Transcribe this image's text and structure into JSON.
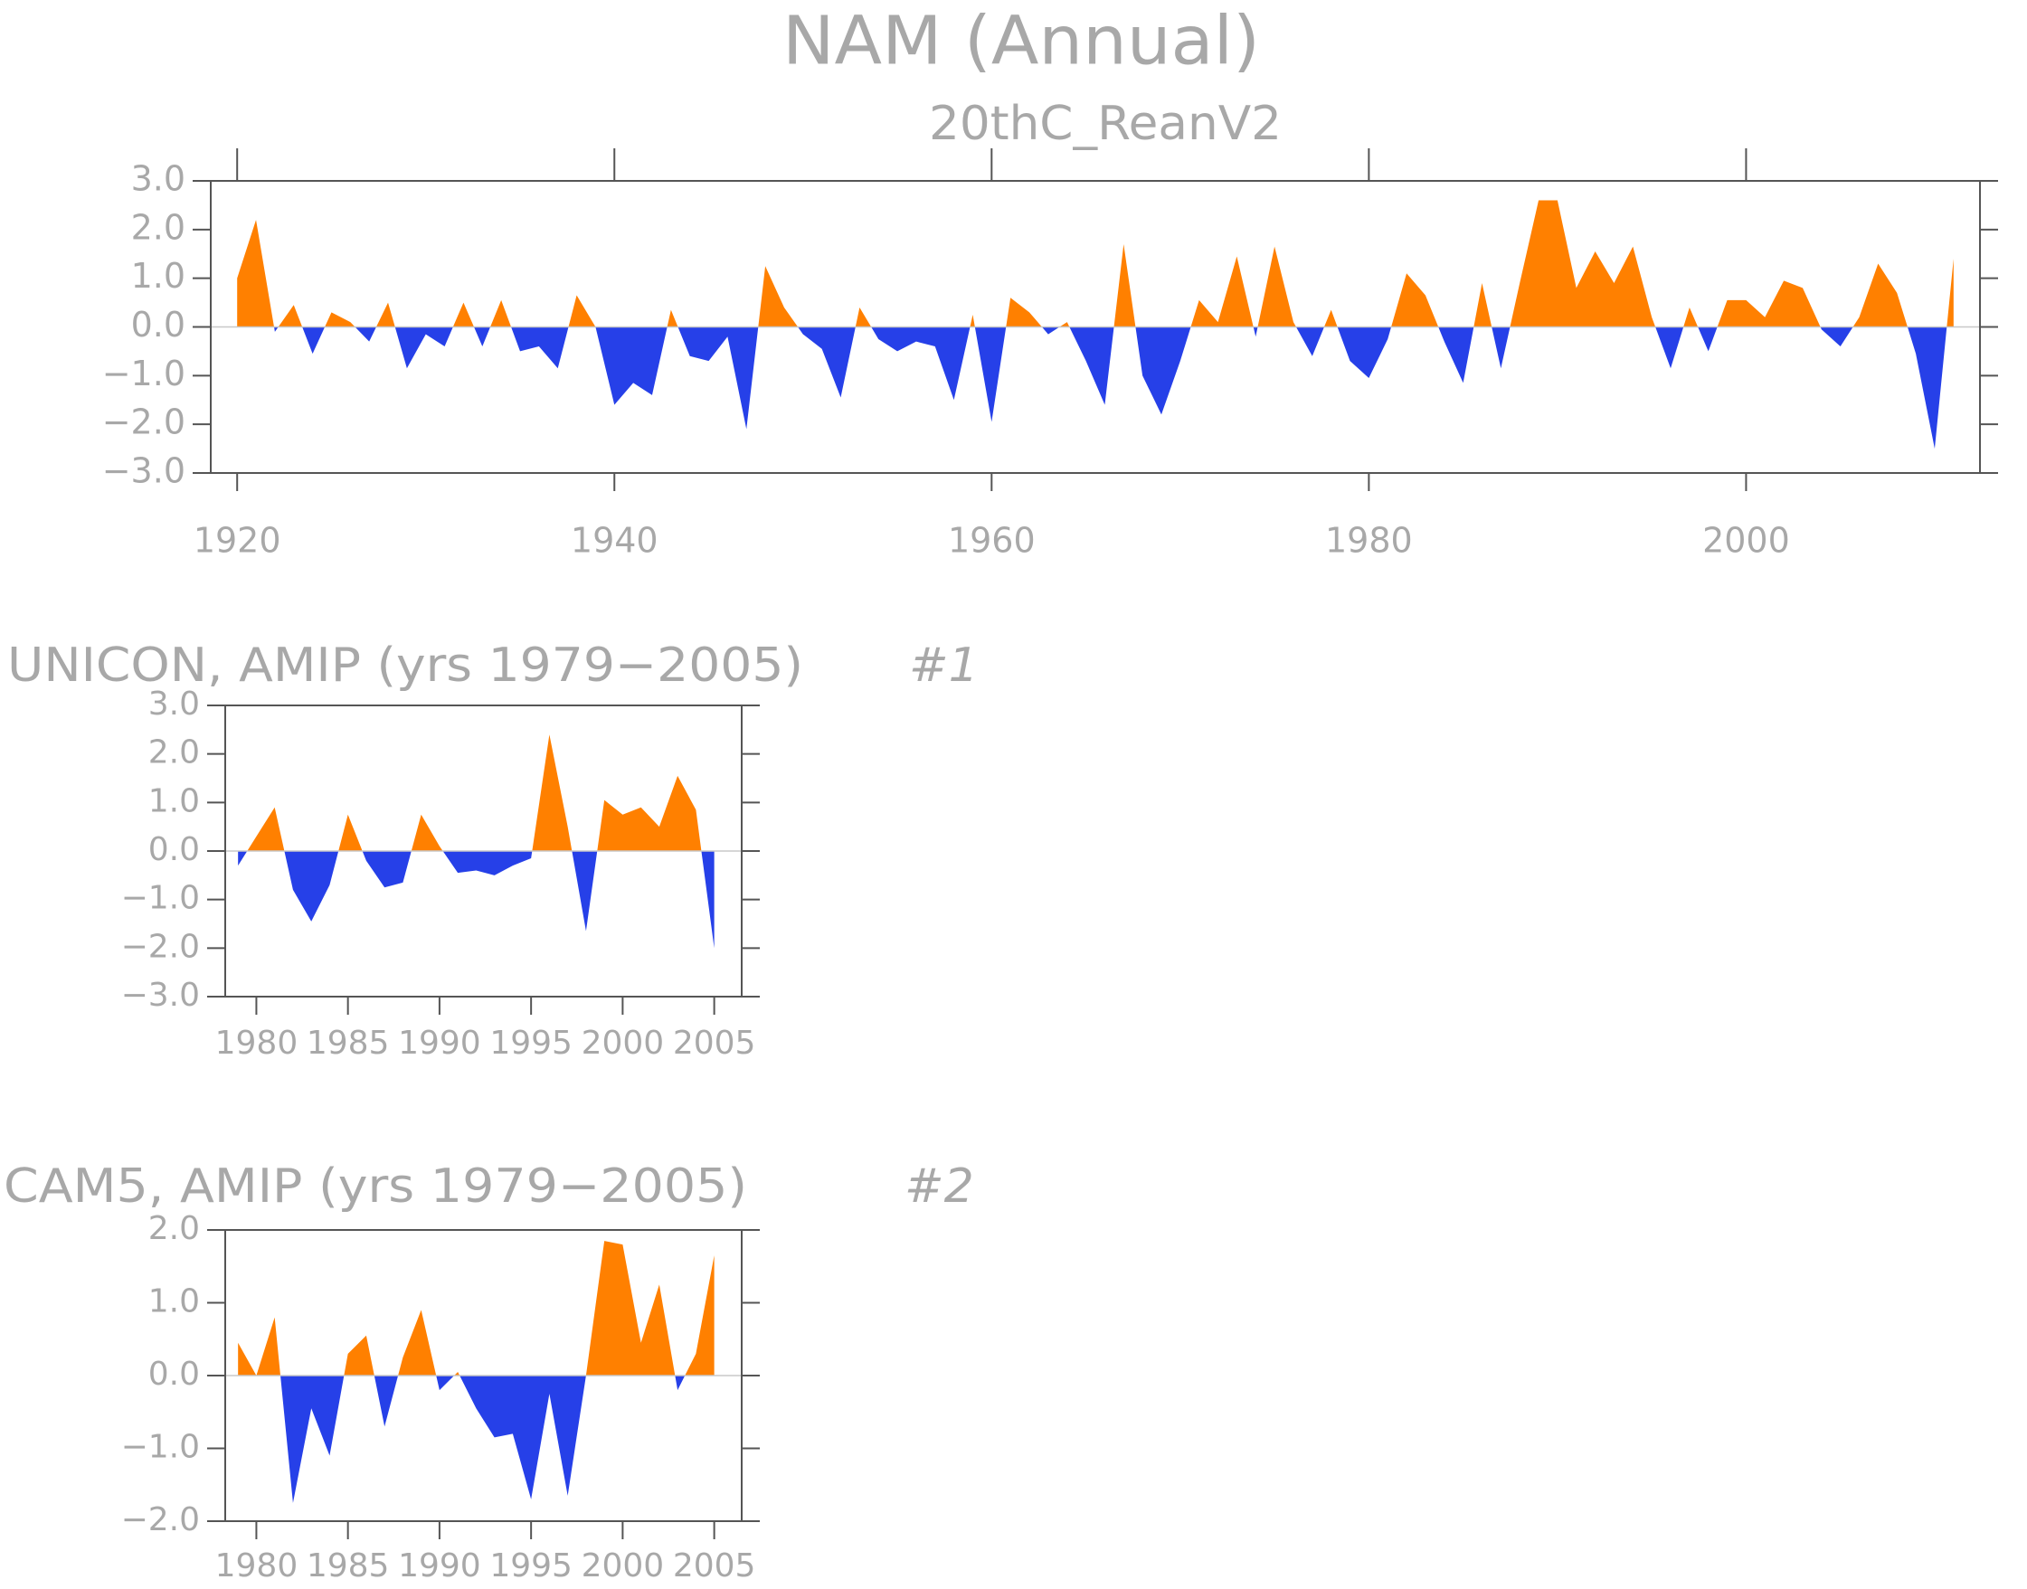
{
  "chart_data": [
    {
      "type": "area",
      "title": "NAM (Annual)",
      "subtitle": "20thC_ReanV2",
      "x": [
        1920,
        1921,
        1922,
        1923,
        1924,
        1925,
        1926,
        1927,
        1928,
        1929,
        1930,
        1931,
        1932,
        1933,
        1934,
        1935,
        1936,
        1937,
        1938,
        1939,
        1940,
        1941,
        1942,
        1943,
        1944,
        1945,
        1946,
        1947,
        1948,
        1949,
        1950,
        1951,
        1952,
        1953,
        1954,
        1955,
        1956,
        1957,
        1958,
        1959,
        1960,
        1961,
        1962,
        1963,
        1964,
        1965,
        1966,
        1967,
        1968,
        1969,
        1970,
        1971,
        1972,
        1973,
        1974,
        1975,
        1976,
        1977,
        1978,
        1979,
        1980,
        1981,
        1982,
        1983,
        1984,
        1985,
        1986,
        1987,
        1988,
        1989,
        1990,
        1991,
        1992,
        1993,
        1994,
        1995,
        1996,
        1997,
        1998,
        1999,
        2000,
        2001,
        2002,
        2003,
        2004,
        2005,
        2006,
        2007,
        2008,
        2009,
        2010,
        2011
      ],
      "values": [
        1.0,
        2.2,
        -0.1,
        0.45,
        -0.55,
        0.3,
        0.1,
        -0.3,
        0.5,
        -0.85,
        -0.15,
        -0.4,
        0.5,
        -0.4,
        0.55,
        -0.5,
        -0.4,
        -0.85,
        0.65,
        0.0,
        -1.6,
        -1.15,
        -1.4,
        0.35,
        -0.6,
        -0.7,
        -0.2,
        -2.1,
        1.25,
        0.4,
        -0.15,
        -0.45,
        -1.45,
        0.4,
        -0.25,
        -0.5,
        -0.3,
        -0.4,
        -1.5,
        0.25,
        -1.95,
        0.6,
        0.3,
        -0.15,
        0.1,
        -0.7,
        -1.6,
        1.7,
        -1.0,
        -1.8,
        -0.7,
        0.55,
        0.1,
        1.45,
        -0.2,
        1.65,
        0.1,
        -0.6,
        0.35,
        -0.7,
        -1.05,
        -0.25,
        1.1,
        0.65,
        -0.3,
        -1.15,
        0.9,
        -0.85,
        0.9,
        2.6,
        2.6,
        0.8,
        1.55,
        0.9,
        1.65,
        0.2,
        -0.85,
        0.4,
        -0.5,
        0.55,
        0.55,
        0.2,
        0.95,
        0.8,
        -0.05,
        -0.4,
        0.2,
        1.3,
        0.7,
        -0.55,
        -2.5,
        1.4
      ],
      "xlim": [
        1918.6,
        2012.4
      ],
      "ylim": [
        -3,
        3
      ],
      "xticks": [
        1920,
        1940,
        1960,
        1980,
        2000
      ],
      "yticks": [
        {
          "value": 3,
          "label": "3.0"
        },
        {
          "value": 2,
          "label": "2.0"
        },
        {
          "value": 1,
          "label": "1.0"
        },
        {
          "value": 0,
          "label": "0.0"
        },
        {
          "value": -1,
          "label": "−1.0"
        },
        {
          "value": -2,
          "label": "−2.0"
        },
        {
          "value": -3,
          "label": "−3.0"
        }
      ],
      "positive_color": "#ff8000",
      "negative_color": "#2640e8"
    },
    {
      "type": "area",
      "title": "UNICON, AMIP (yrs 1979−2005)",
      "panel_label": "#1",
      "x": [
        1979,
        1980,
        1981,
        1982,
        1983,
        1984,
        1985,
        1986,
        1987,
        1988,
        1989,
        1990,
        1991,
        1992,
        1993,
        1994,
        1995,
        1996,
        1997,
        1998,
        1999,
        2000,
        2001,
        2002,
        2003,
        2004,
        2005
      ],
      "values": [
        -0.3,
        0.3,
        0.9,
        -0.8,
        -1.45,
        -0.7,
        0.75,
        -0.2,
        -0.75,
        -0.65,
        0.75,
        0.1,
        -0.45,
        -0.4,
        -0.5,
        -0.3,
        -0.15,
        2.4,
        0.5,
        -1.65,
        1.05,
        0.75,
        0.9,
        0.5,
        1.55,
        0.85,
        -2.0
      ],
      "xlim": [
        1978.3,
        2006.5
      ],
      "ylim": [
        -3,
        3
      ],
      "xticks": [
        1980,
        1985,
        1990,
        1995,
        2000,
        2005
      ],
      "yticks": [
        {
          "value": 3,
          "label": "3.0"
        },
        {
          "value": 2,
          "label": "2.0"
        },
        {
          "value": 1,
          "label": "1.0"
        },
        {
          "value": 0,
          "label": "0.0"
        },
        {
          "value": -1,
          "label": "−1.0"
        },
        {
          "value": -2,
          "label": "−2.0"
        },
        {
          "value": -3,
          "label": "−3.0"
        }
      ],
      "positive_color": "#ff8000",
      "negative_color": "#2640e8"
    },
    {
      "type": "area",
      "title": "CAM5, AMIP (yrs 1979−2005)",
      "panel_label": "#2",
      "x": [
        1979,
        1980,
        1981,
        1982,
        1983,
        1984,
        1985,
        1986,
        1987,
        1988,
        1989,
        1990,
        1991,
        1992,
        1993,
        1994,
        1995,
        1996,
        1997,
        1998,
        1999,
        2000,
        2001,
        2002,
        2003,
        2004,
        2005
      ],
      "values": [
        0.45,
        0.0,
        0.8,
        -1.75,
        -0.45,
        -1.1,
        0.3,
        0.55,
        -0.7,
        0.25,
        0.9,
        -0.2,
        0.05,
        -0.45,
        -0.85,
        -0.8,
        -1.7,
        -0.25,
        -1.65,
        0.0,
        1.85,
        1.8,
        0.45,
        1.25,
        -0.2,
        0.3,
        1.65
      ],
      "xlim": [
        1978.3,
        2006.5
      ],
      "ylim": [
        -2,
        2
      ],
      "xticks": [
        1980,
        1985,
        1990,
        1995,
        2000,
        2005
      ],
      "yticks": [
        {
          "value": 2,
          "label": "2.0"
        },
        {
          "value": 1,
          "label": "1.0"
        },
        {
          "value": 0,
          "label": "0.0"
        },
        {
          "value": -1,
          "label": "−1.0"
        },
        {
          "value": -2,
          "label": "−2.0"
        }
      ],
      "positive_color": "#ff8000",
      "negative_color": "#2640e8"
    }
  ]
}
